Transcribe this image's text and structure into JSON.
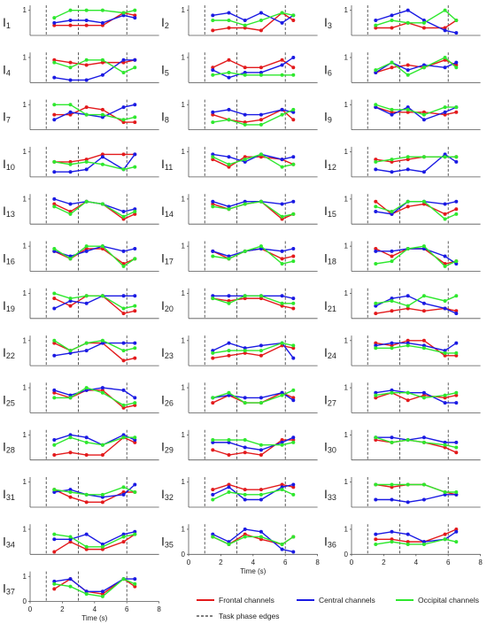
{
  "chart_data": {
    "type": "line",
    "xlabel": "Time (s)",
    "panel_letter": "I",
    "x": [
      1.5,
      2.5,
      3.5,
      4.5,
      5.8,
      6.5
    ],
    "xlim": [
      0,
      8
    ],
    "xticks": [
      0,
      2,
      4,
      6,
      8
    ],
    "ylim": [
      0,
      1.2
    ],
    "yticks": [
      0,
      1
    ],
    "phase_edges": [
      1,
      3,
      6
    ],
    "phase_edge_label": "Task phase edges",
    "series": [
      {
        "name": "Frontal channels",
        "color": "#e31a1c"
      },
      {
        "name": "Central channels",
        "color": "#1a1ae3"
      },
      {
        "name": "Occipital channels",
        "color": "#2ee82e"
      }
    ],
    "panels": [
      {
        "index": "1",
        "values": [
          [
            0.4,
            0.4,
            0.4,
            0.4,
            0.9,
            0.8
          ],
          [
            0.5,
            0.6,
            0.6,
            0.5,
            0.8,
            0.7
          ],
          [
            0.7,
            1,
            1,
            1,
            0.9,
            1
          ]
        ]
      },
      {
        "index": "2",
        "values": [
          [
            0.2,
            0.3,
            0.3,
            0.2,
            0.9,
            0.6
          ],
          [
            0.8,
            0.9,
            0.6,
            0.9,
            0.5,
            0.8
          ],
          [
            0.6,
            0.6,
            0.4,
            0.6,
            0.9,
            0.8
          ]
        ]
      },
      {
        "index": "3",
        "values": [
          [
            0.3,
            0.3,
            0.5,
            0.3,
            0.3,
            0.6
          ],
          [
            0.6,
            0.8,
            1,
            0.6,
            0.2,
            0.1
          ],
          [
            0.4,
            0.6,
            0.5,
            0.5,
            1,
            0.6
          ]
        ]
      },
      {
        "index": "4",
        "values": [
          [
            0.9,
            0.8,
            0.7,
            0.8,
            0.8,
            0.9
          ],
          [
            0.2,
            0.1,
            0.1,
            0.3,
            0.9,
            0.9
          ],
          [
            0.8,
            0.6,
            0.9,
            0.9,
            0.4,
            0.6
          ]
        ]
      },
      {
        "index": "5",
        "values": [
          [
            0.6,
            0.9,
            0.6,
            0.6,
            0.9,
            0.6
          ],
          [
            0.5,
            0.2,
            0.4,
            0.4,
            0.7,
            1
          ],
          [
            0.3,
            0.4,
            0.3,
            0.3,
            0.3,
            0.3
          ]
        ]
      },
      {
        "index": "6",
        "values": [
          [
            0.4,
            0.6,
            0.7,
            0.6,
            0.9,
            0.7
          ],
          [
            0.4,
            0.8,
            0.5,
            0.7,
            0.6,
            0.8
          ],
          [
            0.5,
            0.8,
            0.3,
            0.6,
            1,
            0.6
          ]
        ]
      },
      {
        "index": "7",
        "values": [
          [
            0.6,
            0.6,
            0.9,
            0.8,
            0.3,
            0.3
          ],
          [
            0.4,
            0.7,
            0.6,
            0.5,
            0.9,
            1
          ],
          [
            1,
            1,
            0.6,
            0.6,
            0.4,
            0.5
          ]
        ]
      },
      {
        "index": "8",
        "values": [
          [
            0.6,
            0.4,
            0.3,
            0.4,
            0.8,
            0.4
          ],
          [
            0.7,
            0.8,
            0.6,
            0.6,
            0.8,
            0.7
          ],
          [
            0.3,
            0.4,
            0.2,
            0.2,
            0.6,
            0.8
          ]
        ]
      },
      {
        "index": "9",
        "values": [
          [
            0.9,
            0.7,
            0.7,
            0.7,
            0.6,
            0.7
          ],
          [
            0.9,
            0.6,
            0.9,
            0.4,
            0.7,
            0.9
          ],
          [
            1,
            0.8,
            0.8,
            0.6,
            0.9,
            0.9
          ]
        ]
      },
      {
        "index": "10",
        "values": [
          [
            0.6,
            0.6,
            0.7,
            0.9,
            0.9,
            0.9
          ],
          [
            0.2,
            0.2,
            0.3,
            0.8,
            0.3,
            0.9
          ],
          [
            0.6,
            0.5,
            0.6,
            0.5,
            0.3,
            0.4
          ]
        ]
      },
      {
        "index": "11",
        "values": [
          [
            0.7,
            0.4,
            0.8,
            0.8,
            0.7,
            0.5
          ],
          [
            0.9,
            0.8,
            0.6,
            0.9,
            0.7,
            0.8
          ],
          [
            0.8,
            0.5,
            0.7,
            0.9,
            0.4,
            0.5
          ]
        ]
      },
      {
        "index": "12",
        "values": [
          [
            0.7,
            0.6,
            0.7,
            0.8,
            0.8,
            0.8
          ],
          [
            0.3,
            0.2,
            0.3,
            0.2,
            0.9,
            0.6
          ],
          [
            0.6,
            0.7,
            0.8,
            0.8,
            0.8,
            0.8
          ]
        ]
      },
      {
        "index": "13",
        "values": [
          [
            0.8,
            0.5,
            0.9,
            0.8,
            0.2,
            0.4
          ],
          [
            1,
            0.8,
            0.9,
            0.8,
            0.5,
            0.6
          ],
          [
            0.7,
            0.4,
            0.9,
            0.8,
            0.3,
            0.5
          ]
        ]
      },
      {
        "index": "14",
        "values": [
          [
            0.8,
            0.6,
            0.8,
            0.9,
            0.2,
            0.4
          ],
          [
            0.9,
            0.7,
            0.9,
            0.9,
            0.8,
            0.9
          ],
          [
            0.7,
            0.6,
            0.8,
            0.9,
            0.3,
            0.4
          ]
        ]
      },
      {
        "index": "15",
        "values": [
          [
            0.9,
            0.4,
            0.7,
            0.8,
            0.4,
            0.6
          ],
          [
            0.5,
            0.4,
            0.9,
            0.9,
            0.8,
            0.9
          ],
          [
            0.7,
            0.5,
            0.9,
            0.9,
            0.2,
            0.4
          ]
        ]
      },
      {
        "index": "16",
        "values": [
          [
            0.8,
            0.5,
            0.9,
            0.9,
            0.3,
            0.5
          ],
          [
            0.8,
            0.6,
            0.8,
            1,
            0.8,
            0.9
          ],
          [
            0.9,
            0.5,
            1,
            1,
            0.2,
            0.5
          ]
        ]
      },
      {
        "index": "17",
        "values": [
          [
            0.8,
            0.5,
            0.8,
            0.9,
            0.5,
            0.6
          ],
          [
            0.8,
            0.6,
            0.8,
            0.9,
            0.8,
            0.9
          ],
          [
            0.6,
            0.5,
            0.8,
            1,
            0.3,
            0.4
          ]
        ]
      },
      {
        "index": "18",
        "values": [
          [
            0.9,
            0.6,
            0.9,
            0.9,
            0.3,
            0.4
          ],
          [
            0.8,
            0.8,
            0.9,
            0.9,
            0.6,
            0.3
          ],
          [
            0.3,
            0.4,
            0.9,
            1,
            0.2,
            0.4
          ]
        ]
      },
      {
        "index": "19",
        "values": [
          [
            0.8,
            0.5,
            0.9,
            0.9,
            0.2,
            0.3
          ],
          [
            0.4,
            0.7,
            0.6,
            0.9,
            0.9,
            0.9
          ],
          [
            1,
            0.8,
            0.9,
            0.9,
            0.4,
            0.5
          ]
        ]
      },
      {
        "index": "20",
        "values": [
          [
            0.8,
            0.7,
            0.8,
            0.8,
            0.5,
            0.4
          ],
          [
            0.9,
            0.9,
            0.9,
            0.9,
            0.9,
            0.8
          ],
          [
            0.8,
            0.6,
            0.9,
            0.9,
            0.6,
            0.6
          ]
        ]
      },
      {
        "index": "21",
        "values": [
          [
            0.2,
            0.3,
            0.4,
            0.3,
            0.4,
            0.3
          ],
          [
            0.5,
            0.8,
            0.9,
            0.6,
            0.4,
            0.2
          ],
          [
            0.6,
            0.7,
            0.5,
            0.9,
            0.7,
            0.9
          ]
        ]
      },
      {
        "index": "22",
        "values": [
          [
            0.9,
            0.6,
            0.9,
            0.9,
            0.2,
            0.3
          ],
          [
            0.4,
            0.5,
            0.6,
            0.9,
            0.9,
            0.9
          ],
          [
            1,
            0.6,
            0.9,
            1,
            0.6,
            0.7
          ]
        ]
      },
      {
        "index": "23",
        "values": [
          [
            0.3,
            0.4,
            0.5,
            0.4,
            0.8,
            0.7
          ],
          [
            0.6,
            0.9,
            0.7,
            0.8,
            0.9,
            0.3
          ],
          [
            0.5,
            0.6,
            0.6,
            0.6,
            0.9,
            0.8
          ]
        ]
      },
      {
        "index": "24",
        "values": [
          [
            0.9,
            0.8,
            1,
            1,
            0.4,
            0.4
          ],
          [
            0.8,
            0.9,
            0.9,
            0.8,
            0.6,
            0.9
          ],
          [
            0.7,
            0.7,
            0.8,
            0.7,
            0.5,
            0.5
          ]
        ]
      },
      {
        "index": "25",
        "values": [
          [
            0.8,
            0.6,
            0.9,
            0.9,
            0.2,
            0.3
          ],
          [
            0.9,
            0.7,
            0.9,
            1,
            0.9,
            0.6
          ],
          [
            0.6,
            0.6,
            1,
            0.8,
            0.3,
            0.4
          ]
        ]
      },
      {
        "index": "26",
        "values": [
          [
            0.4,
            0.7,
            0.4,
            0.4,
            0.8,
            0.6
          ],
          [
            0.6,
            0.7,
            0.6,
            0.6,
            0.8,
            0.5
          ],
          [
            0.6,
            0.8,
            0.4,
            0.4,
            0.7,
            0.9
          ]
        ]
      },
      {
        "index": "27",
        "values": [
          [
            0.6,
            0.8,
            0.5,
            0.7,
            0.6,
            0.7
          ],
          [
            0.8,
            0.9,
            0.8,
            0.8,
            0.4,
            0.4
          ],
          [
            0.7,
            0.8,
            0.8,
            0.6,
            0.7,
            0.8
          ]
        ]
      },
      {
        "index": "28",
        "values": [
          [
            0.2,
            0.3,
            0.2,
            0.2,
            0.9,
            0.7
          ],
          [
            0.8,
            1,
            0.9,
            0.6,
            1,
            0.8
          ],
          [
            0.6,
            0.9,
            0.7,
            0.6,
            0.9,
            0.9
          ]
        ]
      },
      {
        "index": "29",
        "values": [
          [
            0.4,
            0.2,
            0.3,
            0.2,
            0.8,
            0.8
          ],
          [
            0.7,
            0.7,
            0.5,
            0.4,
            0.7,
            0.9
          ],
          [
            0.8,
            0.8,
            0.8,
            0.6,
            0.6,
            0.7
          ]
        ]
      },
      {
        "index": "30",
        "values": [
          [
            0.8,
            0.7,
            0.8,
            0.7,
            0.5,
            0.3
          ],
          [
            0.9,
            0.9,
            0.8,
            0.9,
            0.7,
            0.7
          ],
          [
            0.9,
            0.7,
            0.8,
            0.7,
            0.6,
            0.5
          ]
        ]
      },
      {
        "index": "31",
        "values": [
          [
            0.7,
            0.4,
            0.2,
            0.2,
            0.6,
            0.6
          ],
          [
            0.6,
            0.7,
            0.5,
            0.4,
            0.5,
            0.9
          ],
          [
            0.7,
            0.6,
            0.5,
            0.5,
            0.8,
            0.6
          ]
        ]
      },
      {
        "index": "32",
        "values": [
          [
            0.7,
            0.9,
            0.7,
            0.7,
            0.9,
            0.8
          ],
          [
            0.5,
            0.8,
            0.3,
            0.3,
            0.8,
            0.9
          ],
          [
            0.3,
            0.6,
            0.5,
            0.5,
            0.7,
            0.5
          ]
        ]
      },
      {
        "index": "33",
        "values": [
          [
            0.9,
            0.8,
            0.9,
            0.9,
            0.6,
            0.5
          ],
          [
            0.3,
            0.3,
            0.2,
            0.3,
            0.5,
            0.5
          ],
          [
            0.9,
            0.9,
            0.9,
            0.9,
            0.6,
            0.6
          ]
        ]
      },
      {
        "index": "34",
        "values": [
          [
            0.1,
            0.5,
            0.2,
            0.2,
            0.5,
            0.8
          ],
          [
            0.6,
            0.6,
            0.8,
            0.4,
            0.8,
            0.9
          ],
          [
            0.8,
            0.7,
            0.3,
            0.3,
            0.7,
            0.8
          ]
        ]
      },
      {
        "index": "35",
        "values": [
          [
            0.7,
            0.4,
            0.8,
            0.6,
            0.4,
            0.7
          ],
          [
            0.8,
            0.5,
            1,
            0.9,
            0.2,
            0.1
          ],
          [
            0.7,
            0.4,
            0.7,
            0.7,
            0.4,
            0.7
          ]
        ]
      },
      {
        "index": "36",
        "values": [
          [
            0.6,
            0.6,
            0.5,
            0.5,
            0.8,
            1
          ],
          [
            0.8,
            0.9,
            0.8,
            0.5,
            0.6,
            0.9
          ],
          [
            0.4,
            0.5,
            0.4,
            0.4,
            0.6,
            0.5
          ]
        ]
      },
      {
        "index": "37",
        "values": [
          [
            0.5,
            0.9,
            0.4,
            0.3,
            0.9,
            0.6
          ],
          [
            0.8,
            0.9,
            0.4,
            0.4,
            0.9,
            0.9
          ],
          [
            0.7,
            0.6,
            0.3,
            0.2,
            0.9,
            0.7
          ]
        ]
      }
    ]
  }
}
